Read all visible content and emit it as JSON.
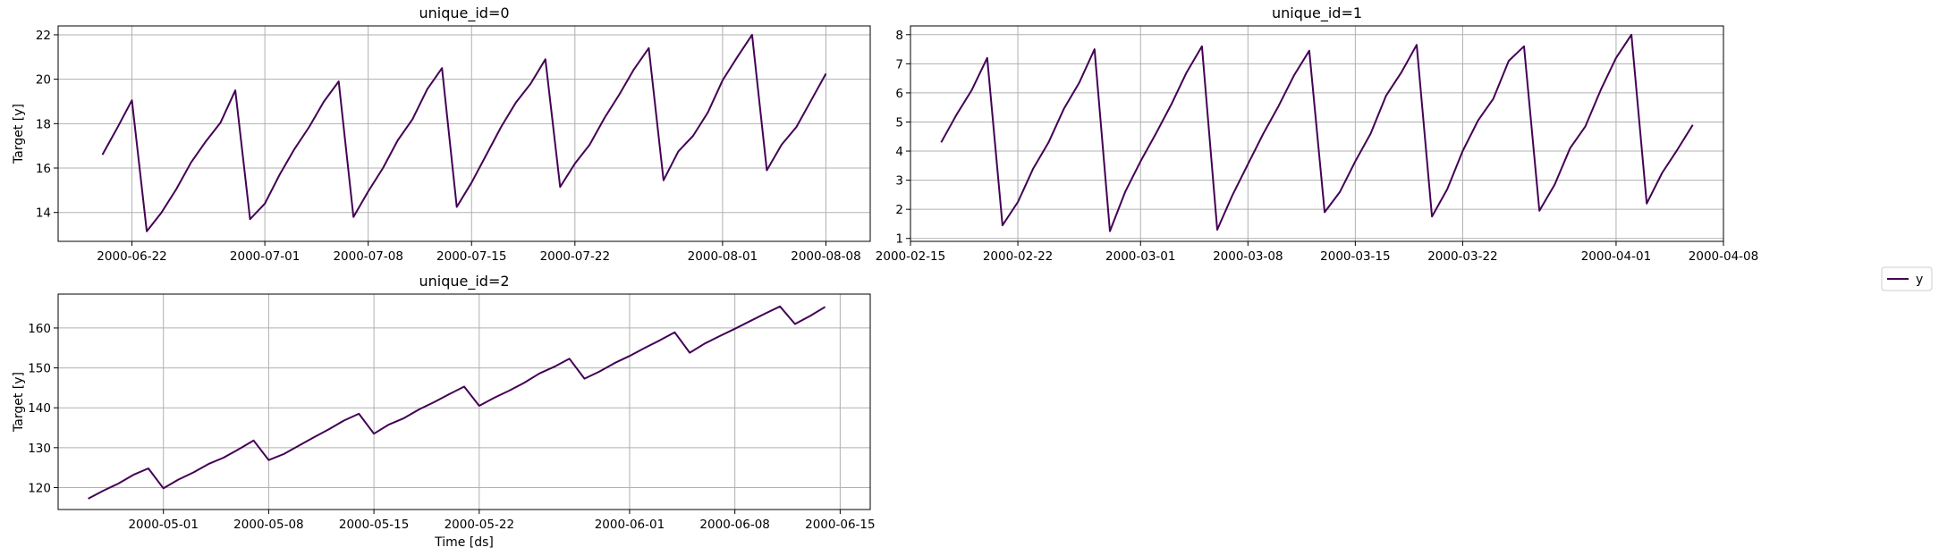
{
  "legend": {
    "entries": [
      {
        "label": "y",
        "color": "#440154"
      }
    ],
    "placement": "center-right"
  },
  "chart_data": [
    {
      "type": "line",
      "title": "unique_id=0",
      "xlabel": "",
      "ylabel": "Target [y]",
      "grid": true,
      "xticks": [
        "2000-06-22",
        "2000-07-01",
        "2000-07-08",
        "2000-07-15",
        "2000-07-22",
        "2000-08-01",
        "2000-08-08"
      ],
      "yticks": [
        14,
        16,
        18,
        20,
        22
      ],
      "xlim": [
        "2000-06-17",
        "2000-08-11"
      ],
      "ylim": [
        12.7,
        22.4
      ],
      "series": [
        {
          "name": "y",
          "color": "#440154",
          "x_start": "2000-06-20",
          "values": [
            16.6,
            17.8,
            19.05,
            13.15,
            14.0,
            15.05,
            16.25,
            17.2,
            18.05,
            19.5,
            13.7,
            14.4,
            15.7,
            16.85,
            17.85,
            19.0,
            19.9,
            13.8,
            14.95,
            16.0,
            17.25,
            18.2,
            19.55,
            20.5,
            14.25,
            15.35,
            16.6,
            17.85,
            18.95,
            19.8,
            20.9,
            15.15,
            16.2,
            17.05,
            18.25,
            19.3,
            20.45,
            21.4,
            15.45,
            16.75,
            17.45,
            18.5,
            19.95,
            21.0,
            22.0,
            15.9,
            17.05,
            17.85,
            19.05,
            20.25
          ]
        }
      ]
    },
    {
      "type": "line",
      "title": "unique_id=1",
      "xlabel": "",
      "ylabel": "",
      "grid": true,
      "xticks": [
        "2000-02-15",
        "2000-02-22",
        "2000-03-01",
        "2000-03-08",
        "2000-03-15",
        "2000-03-22",
        "2000-04-01",
        "2000-04-08"
      ],
      "yticks": [
        1,
        2,
        3,
        4,
        5,
        6,
        7,
        8
      ],
      "xlim": [
        "2000-02-15",
        "2000-04-08"
      ],
      "ylim": [
        0.9,
        8.3
      ],
      "series": [
        {
          "name": "y",
          "color": "#440154",
          "x_start": "2000-02-17",
          "values": [
            4.3,
            5.25,
            6.1,
            7.2,
            1.45,
            2.25,
            3.4,
            4.3,
            5.45,
            6.35,
            7.5,
            1.25,
            2.6,
            3.65,
            4.6,
            5.6,
            6.7,
            7.6,
            1.3,
            2.5,
            3.55,
            4.6,
            5.55,
            6.6,
            7.45,
            1.9,
            2.6,
            3.65,
            4.6,
            5.9,
            6.7,
            7.65,
            1.75,
            2.7,
            4.0,
            5.05,
            5.8,
            7.1,
            7.6,
            1.95,
            2.85,
            4.1,
            4.85,
            6.1,
            7.2,
            8.0,
            2.2,
            3.25,
            4.05,
            4.9
          ]
        }
      ]
    },
    {
      "type": "line",
      "title": "unique_id=2",
      "xlabel": "Time [ds]",
      "ylabel": "Target [y]",
      "grid": true,
      "xticks": [
        "2000-05-01",
        "2000-05-08",
        "2000-05-15",
        "2000-05-22",
        "2000-06-01",
        "2000-06-08",
        "2000-06-15"
      ],
      "yticks": [
        120,
        130,
        140,
        150,
        160
      ],
      "xlim": [
        "2000-04-24",
        "2000-06-17"
      ],
      "ylim": [
        114.5,
        168.5
      ],
      "series": [
        {
          "name": "y",
          "color": "#440154",
          "x_start": "2000-04-26",
          "values": [
            117.2,
            119.2,
            121.0,
            123.2,
            124.8,
            119.8,
            122.0,
            123.8,
            125.9,
            127.5,
            129.6,
            131.8,
            126.9,
            128.4,
            130.5,
            132.6,
            134.6,
            136.8,
            138.5,
            133.5,
            135.8,
            137.4,
            139.6,
            141.4,
            143.4,
            145.3,
            140.5,
            142.5,
            144.3,
            146.3,
            148.6,
            150.3,
            152.3,
            147.3,
            149.1,
            151.2,
            153.0,
            155.0,
            156.9,
            158.9,
            153.8,
            156.1,
            158.0,
            159.8,
            161.7,
            163.6,
            165.4,
            161.0,
            163.0,
            165.3
          ]
        }
      ]
    }
  ]
}
